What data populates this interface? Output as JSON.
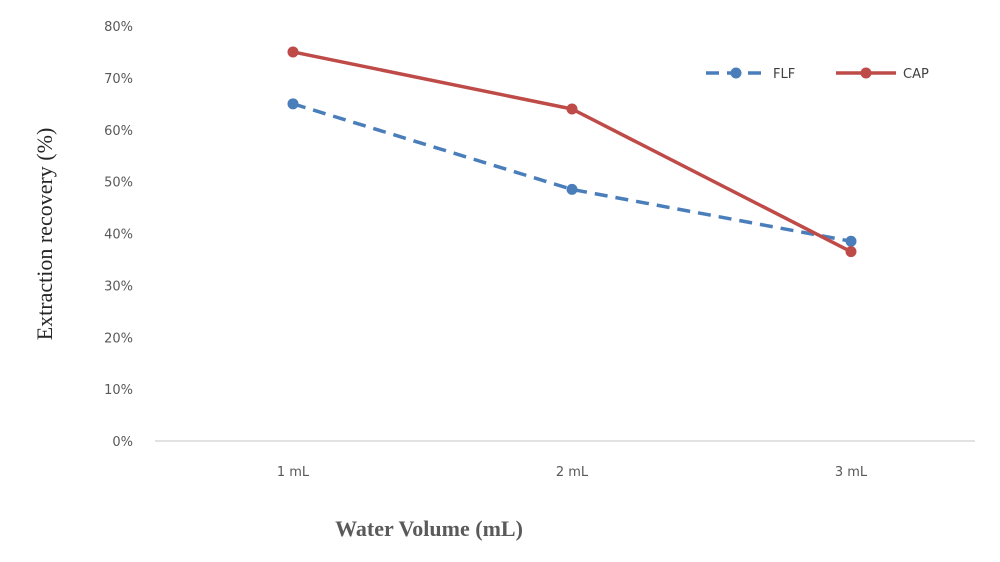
{
  "chart_data": {
    "type": "line",
    "categories": [
      "1 mL",
      "2 mL",
      "3 mL"
    ],
    "series": [
      {
        "name": "FLF",
        "values": [
          65,
          48.5,
          38.5
        ],
        "color": "#4a7ebb",
        "dash": true
      },
      {
        "name": "CAP",
        "values": [
          75,
          64,
          36.5
        ],
        "color": "#be4b48",
        "dash": false
      }
    ],
    "title": "",
    "xlabel": "Water Volume (mL)",
    "ylabel": "Extraction recovery (%)",
    "ylim": [
      0,
      80
    ],
    "yticks": [
      "0%",
      "10%",
      "20%",
      "30%",
      "40%",
      "50%",
      "60%",
      "70%",
      "80%"
    ],
    "grid": false,
    "legend": "top-right"
  }
}
